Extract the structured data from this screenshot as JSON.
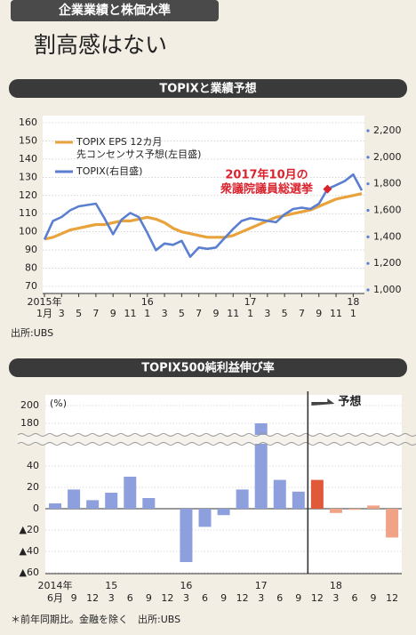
{
  "header": {
    "tag": "企業業績と株価水準",
    "title": "割高感はない"
  },
  "chart_data": [
    {
      "type": "line",
      "title": "TOPIXと業績予想",
      "source": "出所:UBS",
      "x": [
        "2015-01",
        "2015-02",
        "2015-03",
        "2015-04",
        "2015-05",
        "2015-06",
        "2015-07",
        "2015-08",
        "2015-09",
        "2015-10",
        "2015-11",
        "2015-12",
        "2016-01",
        "2016-02",
        "2016-03",
        "2016-04",
        "2016-05",
        "2016-06",
        "2016-07",
        "2016-08",
        "2016-09",
        "2016-10",
        "2016-11",
        "2016-12",
        "2017-01",
        "2017-02",
        "2017-03",
        "2017-04",
        "2017-05",
        "2017-06",
        "2017-07",
        "2017-08",
        "2017-09",
        "2017-10",
        "2017-11",
        "2017-12",
        "2018-01",
        "2018-02"
      ],
      "series": [
        {
          "name": "TOPIX EPS 12カ月先コンセンサス予想(左目盛)",
          "color": "#e8a33c",
          "values": [
            96,
            97,
            99,
            101,
            102,
            103,
            104,
            104,
            105,
            106,
            106,
            107,
            108,
            107,
            105,
            102,
            100,
            99,
            98,
            97,
            97,
            97,
            98,
            100,
            102,
            104,
            106,
            108,
            109,
            110,
            111,
            112,
            114,
            116,
            118,
            119,
            120,
            121
          ]
        },
        {
          "name": "TOPIX(右目盛)",
          "color": "#5b7fd0",
          "axis": "y2",
          "values": [
            1380,
            1520,
            1550,
            1600,
            1630,
            1640,
            1650,
            1540,
            1420,
            1530,
            1580,
            1550,
            1430,
            1300,
            1350,
            1340,
            1370,
            1250,
            1320,
            1310,
            1320,
            1390,
            1460,
            1520,
            1540,
            1530,
            1520,
            1510,
            1570,
            1610,
            1620,
            1610,
            1650,
            1760,
            1790,
            1820,
            1870,
            1750
          ]
        }
      ],
      "xlim": [
        "2015-01",
        "2018-02"
      ],
      "xticks": [
        {
          "value": "2015-01",
          "label": "1月"
        },
        {
          "value": "2015-03",
          "label": "3"
        },
        {
          "value": "2015-05",
          "label": "5"
        },
        {
          "value": "2015-07",
          "label": "7"
        },
        {
          "value": "2015-09",
          "label": "9"
        },
        {
          "value": "2015-11",
          "label": "11"
        },
        {
          "value": "2016-01",
          "label": "1"
        },
        {
          "value": "2016-03",
          "label": "3"
        },
        {
          "value": "2016-05",
          "label": "5"
        },
        {
          "value": "2016-07",
          "label": "7"
        },
        {
          "value": "2016-09",
          "label": "9"
        },
        {
          "value": "2016-11",
          "label": "11"
        },
        {
          "value": "2017-01",
          "label": "1"
        },
        {
          "value": "2017-03",
          "label": "3"
        },
        {
          "value": "2017-05",
          "label": "5"
        },
        {
          "value": "2017-07",
          "label": "7"
        },
        {
          "value": "2017-09",
          "label": "9"
        },
        {
          "value": "2017-11",
          "label": "11"
        },
        {
          "value": "2018-01",
          "label": "1"
        }
      ],
      "xtick_years": [
        {
          "value": "2015-01",
          "label": "2015年"
        },
        {
          "value": "2016-01",
          "label": "16"
        },
        {
          "value": "2017-01",
          "label": "17"
        },
        {
          "value": "2018-01",
          "label": "18"
        }
      ],
      "ylim": [
        70,
        160
      ],
      "yticks": [
        70,
        80,
        90,
        100,
        110,
        120,
        130,
        140,
        150,
        160
      ],
      "y2lim": [
        1000,
        2200
      ],
      "y2ticks": [
        {
          "value": 1000,
          "label": "1,000"
        },
        {
          "value": 1200,
          "label": "1,200"
        },
        {
          "value": 1400,
          "label": "1,400"
        },
        {
          "value": 1600,
          "label": "1,600"
        },
        {
          "value": 1800,
          "label": "1,800"
        },
        {
          "value": 2000,
          "label": "2,000"
        },
        {
          "value": 2200,
          "label": "2,200"
        }
      ],
      "grid": true,
      "legend": "top-left",
      "annotation": {
        "lines": [
          "2017年10月の",
          "衆議院議員総選挙"
        ],
        "x": "2017-10",
        "color": "#d9232e"
      }
    },
    {
      "type": "bar",
      "title": "TOPIX500純利益伸び率",
      "unit": "(%)",
      "note": "＊前年同期比。金融を除く　出所:UBS",
      "categories": [
        "6月",
        "9",
        "12",
        "3",
        "6",
        "9",
        "12",
        "3",
        "6",
        "9",
        "12",
        "3",
        "6",
        "9",
        "12",
        "3",
        "6",
        "9",
        "12"
      ],
      "year_labels": [
        {
          "index": 0,
          "label": "2014年"
        },
        {
          "index": 3,
          "label": "15"
        },
        {
          "index": 7,
          "label": "16"
        },
        {
          "index": 11,
          "label": "17"
        },
        {
          "index": 15,
          "label": "18"
        }
      ],
      "values": [
        5,
        18,
        8,
        15,
        30,
        10,
        0,
        -50,
        -17,
        -6,
        18,
        180,
        27,
        16,
        27,
        -4,
        -1,
        3,
        -27
      ],
      "colors": [
        "#8e9fdd",
        "#8e9fdd",
        "#8e9fdd",
        "#8e9fdd",
        "#8e9fdd",
        "#8e9fdd",
        "#8e9fdd",
        "#8e9fdd",
        "#8e9fdd",
        "#8e9fdd",
        "#8e9fdd",
        "#8e9fdd",
        "#8e9fdd",
        "#8e9fdd",
        "#e05a3a",
        "#f0a387",
        "#f0a387",
        "#f0a387",
        "#f0a387"
      ],
      "ylim": [
        -60,
        200
      ],
      "y_break": [
        60,
        168
      ],
      "yticks": [
        {
          "value": -60,
          "label": "▲60"
        },
        {
          "value": -40,
          "label": "▲40"
        },
        {
          "value": -20,
          "label": "▲20"
        },
        0,
        20,
        40,
        180,
        200
      ],
      "grid": true,
      "forecast": {
        "label": "予想",
        "from_index": 14
      }
    }
  ]
}
